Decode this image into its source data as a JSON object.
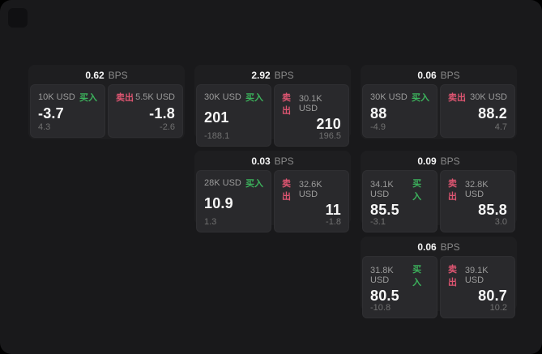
{
  "page": {
    "bps_suffix": "BPS",
    "buy_label": "买入",
    "sell_label": "卖出",
    "colors": {
      "page_bg": "#19191b",
      "card_bg": "#1e1e20",
      "panel_bg": "#29292c",
      "buy_green": "#3cb25c",
      "sell_red": "#dd5571"
    }
  },
  "cards": [
    {
      "bps": "0.62",
      "col": 1,
      "row": 1,
      "buy": {
        "amount": "10K USD",
        "value": "-3.7",
        "sub": "4.3"
      },
      "sell": {
        "amount": "5.5K USD",
        "value": "-1.8",
        "sub": "-2.6"
      }
    },
    {
      "bps": "2.92",
      "col": 2,
      "row": 1,
      "buy": {
        "amount": "30K USD",
        "value": "201",
        "sub": "-188.1"
      },
      "sell": {
        "amount": "30.1K USD",
        "value": "210",
        "sub": "196.5"
      }
    },
    {
      "bps": "0.06",
      "col": 3,
      "row": 1,
      "buy": {
        "amount": "30K USD",
        "value": "88",
        "sub": "-4.9"
      },
      "sell": {
        "amount": "30K USD",
        "value": "88.2",
        "sub": "4.7"
      }
    },
    {
      "bps": "0.03",
      "col": 2,
      "row": 2,
      "buy": {
        "amount": "28K USD",
        "value": "10.9",
        "sub": "1.3"
      },
      "sell": {
        "amount": "32.6K USD",
        "value": "11",
        "sub": "-1.8"
      }
    },
    {
      "bps": "0.09",
      "col": 3,
      "row": 2,
      "buy": {
        "amount": "34.1K USD",
        "value": "85.5",
        "sub": "-3.1"
      },
      "sell": {
        "amount": "32.8K USD",
        "value": "85.8",
        "sub": "3.0"
      }
    },
    {
      "bps": "0.06",
      "col": 3,
      "row": 3,
      "buy": {
        "amount": "31.8K USD",
        "value": "80.5",
        "sub": "-10.8"
      },
      "sell": {
        "amount": "39.1K USD",
        "value": "80.7",
        "sub": "10.2"
      }
    }
  ]
}
